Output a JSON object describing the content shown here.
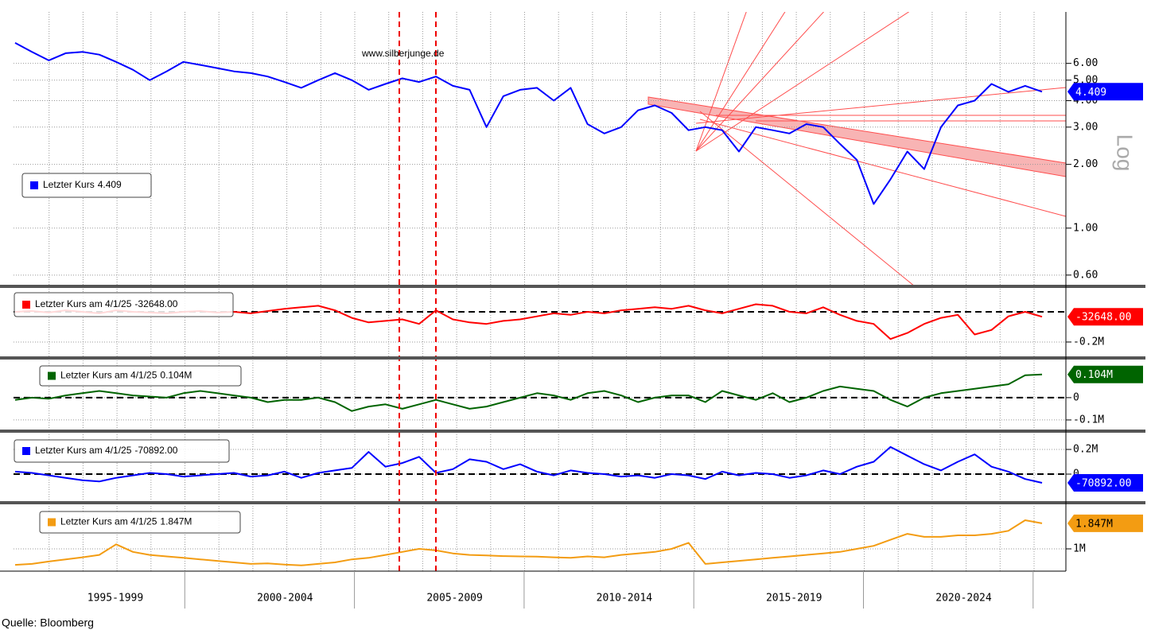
{
  "watermark": "www.silberjunge.de",
  "source": "Quelle: Bloomberg",
  "x_axis": {
    "categories": [
      "1995-1999",
      "2000-2004",
      "2005-2009",
      "2010-2014",
      "2015-2019",
      "2020-2024"
    ]
  },
  "chart_data": [
    {
      "type": "line",
      "log": true,
      "y_axis_label": "Log",
      "grid": true,
      "ylim": [
        0.54,
        10.5
      ],
      "yticks": [
        {
          "value": 0.6,
          "label": "0.60"
        },
        {
          "value": 1,
          "label": "1.00"
        },
        {
          "value": 2,
          "label": "2.00"
        },
        {
          "value": 3,
          "label": "3.00"
        },
        {
          "value": 4,
          "label": "4.00"
        },
        {
          "value": 5,
          "label": "5.00"
        },
        {
          "value": 6,
          "label": "6.00"
        }
      ],
      "series": [
        {
          "name": "Letzter Kurs",
          "color": "#0000ff",
          "last_label": "4.409",
          "values": [
            7.5,
            6.8,
            6.2,
            6.7,
            6.8,
            6.6,
            6.1,
            5.6,
            5.0,
            5.5,
            6.1,
            5.9,
            5.7,
            5.5,
            5.4,
            5.2,
            4.9,
            4.6,
            5.0,
            5.4,
            5.0,
            4.5,
            4.8,
            5.1,
            4.9,
            5.2,
            4.7,
            4.5,
            3.0,
            4.2,
            4.5,
            4.6,
            4.0,
            4.6,
            3.1,
            2.8,
            3.0,
            3.6,
            3.8,
            3.5,
            2.9,
            3.0,
            2.9,
            2.3,
            3.0,
            2.9,
            2.8,
            3.1,
            3.0,
            2.5,
            2.1,
            1.3,
            1.7,
            2.3,
            1.9,
            3.0,
            3.8,
            4.0,
            4.8,
            4.4,
            4.7,
            4.409
          ]
        }
      ]
    },
    {
      "type": "line",
      "grid": true,
      "reference_line": 0,
      "ylim": [
        -295000,
        158000
      ],
      "yticks": [
        {
          "value": -200000,
          "label": "-0.2M"
        }
      ],
      "series": [
        {
          "name": "Letzter Kurs am 4/1/25",
          "color": "#ff0000",
          "last_label": "-32648.00",
          "values": [
            0,
            5000,
            -5000,
            10000,
            0,
            -10000,
            10000,
            0,
            -5000,
            -10000,
            0,
            5000,
            -5000,
            0,
            -10000,
            5000,
            20000,
            30000,
            40000,
            10000,
            -40000,
            -70000,
            -60000,
            -50000,
            -80000,
            10000,
            -50000,
            -70000,
            -80000,
            -60000,
            -50000,
            -30000,
            -10000,
            -20000,
            0,
            -10000,
            10000,
            20000,
            30000,
            20000,
            40000,
            10000,
            -10000,
            20000,
            50000,
            40000,
            0,
            -10000,
            30000,
            -20000,
            -60000,
            -80000,
            -180000,
            -140000,
            -80000,
            -40000,
            -20000,
            -150000,
            -120000,
            -30000,
            0,
            -32648
          ]
        }
      ]
    },
    {
      "type": "line",
      "grid": true,
      "reference_line": 0,
      "ylim": [
        -143000,
        160000
      ],
      "yticks": [
        0,
        {
          "value": -100000,
          "label": "-0.1M"
        }
      ],
      "series": [
        {
          "name": "Letzter Kurs am 4/1/25",
          "color": "#006400",
          "last_label": "0.104M",
          "values": [
            -10000,
            0,
            -5000,
            10000,
            20000,
            30000,
            20000,
            10000,
            5000,
            0,
            20000,
            30000,
            20000,
            10000,
            0,
            -20000,
            -10000,
            -10000,
            0,
            -20000,
            -60000,
            -40000,
            -30000,
            -50000,
            -30000,
            -10000,
            -30000,
            -50000,
            -40000,
            -20000,
            0,
            20000,
            10000,
            -10000,
            20000,
            30000,
            10000,
            -20000,
            0,
            10000,
            10000,
            -20000,
            30000,
            10000,
            -10000,
            20000,
            -20000,
            0,
            30000,
            50000,
            40000,
            30000,
            -10000,
            -40000,
            0,
            20000,
            30000,
            40000,
            50000,
            60000,
            100000,
            104000
          ]
        }
      ]
    },
    {
      "type": "line",
      "grid": true,
      "reference_line": 0,
      "ylim": [
        -219000,
        316000
      ],
      "yticks": [
        {
          "value": 200000,
          "label": "0.2M"
        },
        0
      ],
      "series": [
        {
          "name": "Letzter Kurs am 4/1/25",
          "color": "#0000ff",
          "last_label": "-70892.00",
          "values": [
            20000,
            10000,
            -10000,
            -30000,
            -50000,
            -60000,
            -30000,
            -10000,
            10000,
            0,
            -20000,
            -10000,
            0,
            10000,
            -20000,
            -10000,
            20000,
            -30000,
            10000,
            30000,
            50000,
            180000,
            60000,
            90000,
            140000,
            10000,
            40000,
            120000,
            100000,
            40000,
            80000,
            20000,
            -10000,
            30000,
            10000,
            0,
            -20000,
            -10000,
            -30000,
            0,
            -10000,
            -40000,
            20000,
            -10000,
            10000,
            0,
            -30000,
            -10000,
            30000,
            0,
            60000,
            100000,
            220000,
            150000,
            80000,
            30000,
            100000,
            160000,
            60000,
            20000,
            -40000,
            -70892
          ]
        }
      ]
    },
    {
      "type": "line",
      "grid": true,
      "ylim": [
        260000,
        2400000
      ],
      "yticks": [
        {
          "value": 1000000,
          "label": "1M"
        }
      ],
      "series": [
        {
          "name": "Letzter Kurs am 4/1/25",
          "color": "#f39c12",
          "last_label": "1.847M",
          "values": [
            470000,
            500000,
            580000,
            650000,
            720000,
            800000,
            1150000,
            900000,
            800000,
            750000,
            700000,
            650000,
            600000,
            550000,
            500000,
            520000,
            480000,
            450000,
            500000,
            550000,
            650000,
            700000,
            800000,
            900000,
            1000000,
            950000,
            850000,
            800000,
            780000,
            760000,
            750000,
            740000,
            720000,
            700000,
            750000,
            720000,
            800000,
            850000,
            900000,
            1000000,
            1200000,
            500000,
            550000,
            600000,
            650000,
            700000,
            750000,
            800000,
            850000,
            900000,
            1000000,
            1100000,
            1300000,
            1500000,
            1400000,
            1400000,
            1450000,
            1450000,
            1500000,
            1600000,
            1950000,
            1847000
          ]
        }
      ]
    }
  ]
}
